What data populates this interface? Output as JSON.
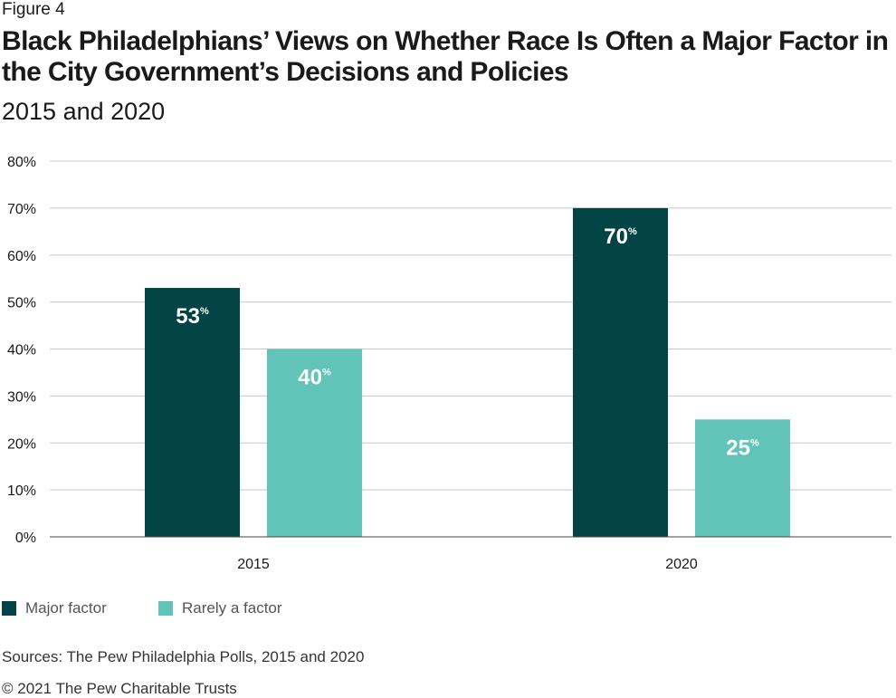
{
  "figure_label": "Figure 4",
  "title": "Black Philadelphians’ Views on Whether Race Is Often a Major Factor in the City Government’s Decisions and Policies",
  "subtitle": "2015 and 2020",
  "colors": {
    "major": "#024446",
    "rarely": "#62c4b9",
    "grid": "#c8c8c8",
    "axis": "#444444"
  },
  "legend": {
    "major_label": "Major factor",
    "rarely_label": "Rarely a factor"
  },
  "source": "Sources: The Pew Philadelphia Polls, 2015 and 2020",
  "copyright": "© 2021 The Pew Charitable Trusts",
  "chart_data": {
    "type": "bar",
    "title": "Black Philadelphians’ Views on Whether Race Is Often a Major Factor in the City Government’s Decisions and Policies",
    "subtitle": "2015 and 2020",
    "categories": [
      "2015",
      "2020"
    ],
    "series": [
      {
        "name": "Major factor",
        "values": [
          53,
          70
        ],
        "labels": [
          "53",
          "70"
        ],
        "color": "#024446"
      },
      {
        "name": "Rarely a factor",
        "values": [
          40,
          25
        ],
        "labels": [
          "40",
          "25"
        ],
        "color": "#62c4b9"
      }
    ],
    "value_suffix": "%",
    "ylim": [
      0,
      80
    ],
    "yticks": [
      0,
      10,
      20,
      30,
      40,
      50,
      60,
      70,
      80
    ],
    "ytick_labels": [
      "0%",
      "10%",
      "20%",
      "30%",
      "40%",
      "50%",
      "60%",
      "70%",
      "80%"
    ],
    "xlabel": "",
    "ylabel": "",
    "grid": true,
    "legend_position": "bottom-left"
  }
}
